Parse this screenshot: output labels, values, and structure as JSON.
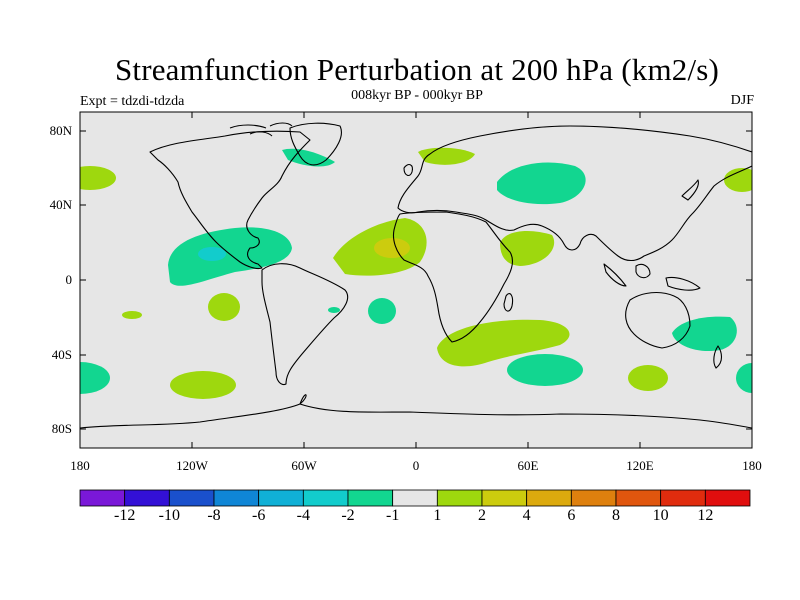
{
  "header": {
    "title": "Streamfunction Perturbation at 200 hPa (km2/s)",
    "subtitle": "008kyr BP - 000kyr BP",
    "left_note": "Expt = tdzdi-tdzda",
    "right_note": "DJF"
  },
  "axes": {
    "lat_labels": [
      "80N",
      "40N",
      "0",
      "40S",
      "80S"
    ],
    "lon_labels": [
      "180",
      "120W",
      "60W",
      "0",
      "60E",
      "120E",
      "180"
    ]
  },
  "colorbar": {
    "colors": [
      "#7a18d8",
      "#3310d6",
      "#1a50cc",
      "#0f86d6",
      "#10b0d6",
      "#12cccc",
      "#12d690",
      "#e6e6e6",
      "#9ed80e",
      "#cccc0e",
      "#dcaa0e",
      "#de800e",
      "#e0560e",
      "#e02c0e",
      "#e00e0e"
    ],
    "labels": [
      "-12",
      "-10",
      "-8",
      "-6",
      "-4",
      "-2",
      "-1",
      "1",
      "2",
      "4",
      "6",
      "8",
      "10",
      "12"
    ]
  },
  "chart_data": {
    "type": "map-contour",
    "title": "Streamfunction Perturbation at 200 hPa (km2/s)",
    "subtitle": "008kyr BP - 000kyr BP",
    "season": "DJF",
    "experiment": "tdzdi-tdzda",
    "contour_levels": [
      -12,
      -10,
      -8,
      -6,
      -4,
      -2,
      -1,
      1,
      2,
      4,
      6,
      8,
      10,
      12
    ],
    "lon_range": [
      -180,
      180
    ],
    "lat_range": [
      -90,
      90
    ],
    "anomalies": [
      {
        "name": "North Pacific-Central America negative",
        "lon": -105,
        "lat": 12,
        "value": -2,
        "peak": -4
      },
      {
        "name": "Greenland negative",
        "lon": -50,
        "lat": 65,
        "value": -1
      },
      {
        "name": "Central Asia negative",
        "lon": 65,
        "lat": 52,
        "value": -2
      },
      {
        "name": "Southern Indian Ocean negative",
        "lon": 70,
        "lat": -47,
        "value": -2
      },
      {
        "name": "South Pacific east of Australia negative",
        "lon": 158,
        "lat": -27,
        "value": -2
      },
      {
        "name": "South Atlantic negative",
        "lon": -25,
        "lat": -17,
        "value": -1
      },
      {
        "name": "Southeast Pacific negative",
        "lon": -178,
        "lat": -48,
        "value": -1
      },
      {
        "name": "Tropical Atlantic positive",
        "lon": -15,
        "lat": 18,
        "value": 2,
        "peak": 4
      },
      {
        "name": "Southern Africa positive",
        "lon": 30,
        "lat": -33,
        "value": 2
      },
      {
        "name": "East Africa-Arabia positive",
        "lon": 42,
        "lat": 17,
        "value": 2
      },
      {
        "name": "Eastern South Pacific positive",
        "lon": -110,
        "lat": -55,
        "value": 2
      },
      {
        "name": "South Pacific subtropics positive",
        "lon": -148,
        "lat": -17,
        "value": 2
      },
      {
        "name": "Southern Ocean south of Australia positive",
        "lon": 125,
        "lat": -53,
        "value": 2
      },
      {
        "name": "Scandinavia positive",
        "lon": 15,
        "lat": 68,
        "value": 2
      },
      {
        "name": "North Pacific positive",
        "lon": -170,
        "lat": 55,
        "value": 2
      },
      {
        "name": "Northeast Pacific positive",
        "lon": 168,
        "lat": 52,
        "value": 2
      }
    ]
  }
}
